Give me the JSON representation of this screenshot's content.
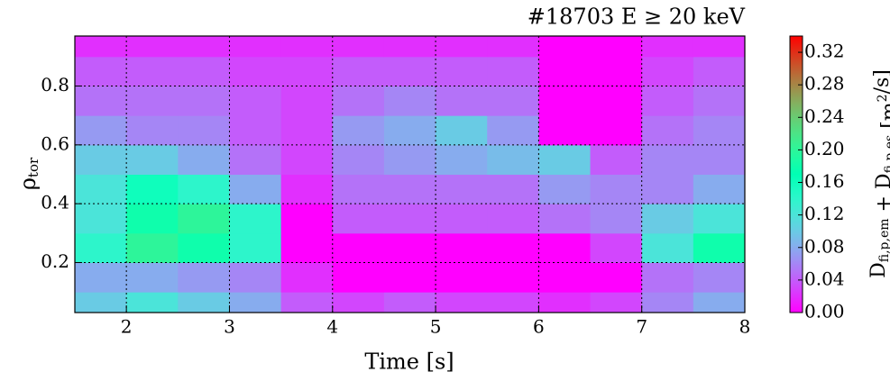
{
  "chart_data": {
    "type": "heatmap",
    "title": "#18703 E ≥ 20 keV",
    "xlabel": "Time [s]",
    "ylabel": {
      "main": "ρ",
      "sub": "tor"
    },
    "colorbar_label": [
      {
        "text": "D",
        "sub": "fi,p,em"
      },
      {
        "text": " + "
      },
      {
        "text": "D",
        "sub": "fi,p,es"
      },
      {
        "text": " [m"
      },
      {
        "sup": "2"
      },
      {
        "text": "/s]"
      }
    ],
    "colormap": "rainbow",
    "grid": true,
    "x": [
      1.75,
      2.25,
      2.75,
      3.25,
      3.75,
      4.25,
      4.75,
      5.25,
      5.75,
      6.25,
      6.75,
      7.25,
      7.75
    ],
    "y": [
      0.05,
      0.15,
      0.25,
      0.35,
      0.45,
      0.55,
      0.65,
      0.75,
      0.85,
      0.95
    ],
    "z": [
      [
        0.1,
        0.12,
        0.1,
        0.08,
        0.04,
        0.03,
        0.04,
        0.03,
        0.03,
        0.02,
        0.03,
        0.06,
        0.08
      ],
      [
        0.08,
        0.08,
        0.07,
        0.06,
        0.02,
        0.0,
        0.0,
        0.0,
        0.0,
        0.0,
        0.0,
        0.05,
        0.06
      ],
      [
        0.14,
        0.2,
        0.18,
        0.14,
        0.0,
        0.0,
        0.0,
        0.0,
        0.0,
        0.0,
        0.03,
        0.12,
        0.18
      ],
      [
        0.12,
        0.18,
        0.2,
        0.14,
        0.0,
        0.04,
        0.04,
        0.04,
        0.04,
        0.05,
        0.06,
        0.1,
        0.12
      ],
      [
        0.12,
        0.16,
        0.14,
        0.08,
        0.02,
        0.05,
        0.05,
        0.05,
        0.05,
        0.07,
        0.06,
        0.06,
        0.08
      ],
      [
        0.1,
        0.1,
        0.08,
        0.05,
        0.03,
        0.06,
        0.07,
        0.08,
        0.09,
        0.1,
        0.04,
        0.06,
        0.06
      ],
      [
        0.07,
        0.06,
        0.06,
        0.04,
        0.03,
        0.07,
        0.08,
        0.1,
        0.07,
        0.0,
        0.0,
        0.05,
        0.06
      ],
      [
        0.05,
        0.05,
        0.05,
        0.04,
        0.03,
        0.05,
        0.06,
        0.05,
        0.05,
        0.0,
        0.0,
        0.04,
        0.05
      ],
      [
        0.04,
        0.04,
        0.04,
        0.03,
        0.03,
        0.04,
        0.04,
        0.04,
        0.04,
        0.0,
        0.0,
        0.03,
        0.04
      ],
      [
        0.02,
        0.02,
        0.02,
        0.02,
        0.02,
        0.02,
        0.02,
        0.02,
        0.02,
        0.0,
        0.0,
        0.02,
        0.02
      ]
    ],
    "xlim": [
      1.5,
      8
    ],
    "ylim": [
      0.03,
      0.97
    ],
    "zlim": [
      0,
      0.34
    ],
    "xticks": [
      2,
      3,
      4,
      5,
      6,
      7,
      8
    ],
    "yticks": [
      0.2,
      0.4,
      0.6,
      0.8
    ],
    "zticks": [
      {
        "value": 0,
        "label": "0.00"
      },
      {
        "value": 0.04,
        "label": "0.04"
      },
      {
        "value": 0.08,
        "label": "0.08"
      },
      {
        "value": 0.12,
        "label": "0.12"
      },
      {
        "value": 0.16,
        "label": "0.16"
      },
      {
        "value": 0.2,
        "label": "0.20"
      },
      {
        "value": 0.24,
        "label": "0.24"
      },
      {
        "value": 0.28,
        "label": "0.28"
      },
      {
        "value": 0.32,
        "label": "0.32"
      }
    ]
  }
}
